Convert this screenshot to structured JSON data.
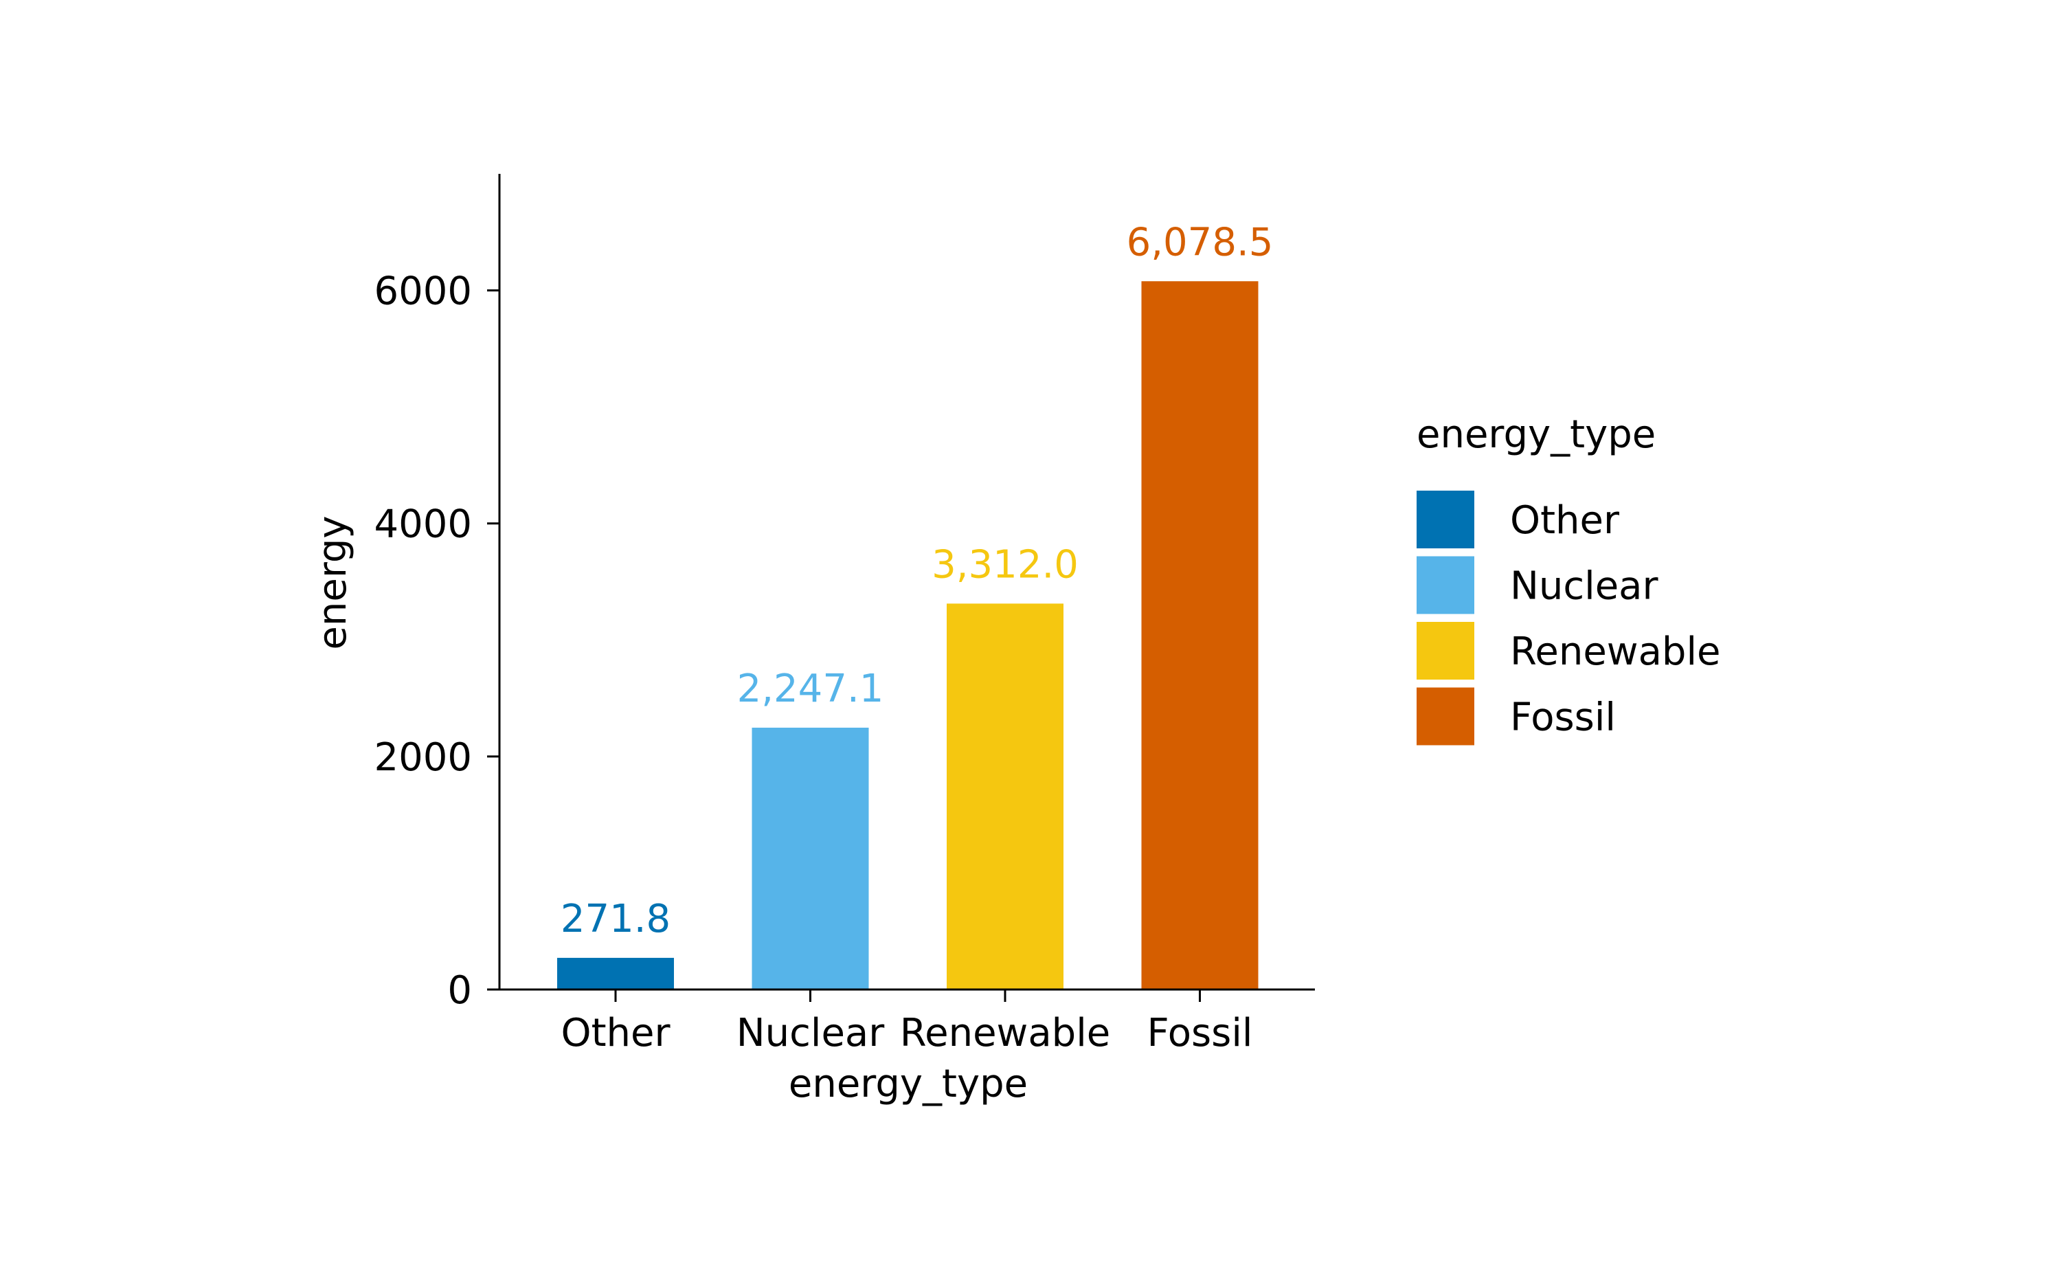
{
  "chart_data": {
    "type": "bar",
    "categories": [
      "Other",
      "Nuclear",
      "Renewable",
      "Fossil"
    ],
    "values": [
      271.8,
      2247.1,
      3312.0,
      6078.5
    ],
    "data_labels": [
      "271.8",
      "2,247.1",
      "3,312.0",
      "6,078.5"
    ],
    "colors": [
      "#0072B2",
      "#56B4E9",
      "#F5C710",
      "#D55E00"
    ],
    "xlabel": "energy_type",
    "ylabel": "energy",
    "ylim": [
      0,
      7000
    ],
    "yticks": [
      0,
      2000,
      4000,
      6000
    ],
    "ytick_labels": [
      "0",
      "2000",
      "4000",
      "6000"
    ],
    "grid": false,
    "legend": {
      "title": "energy_type",
      "position": "right",
      "entries": [
        "Other",
        "Nuclear",
        "Renewable",
        "Fossil"
      ]
    }
  }
}
